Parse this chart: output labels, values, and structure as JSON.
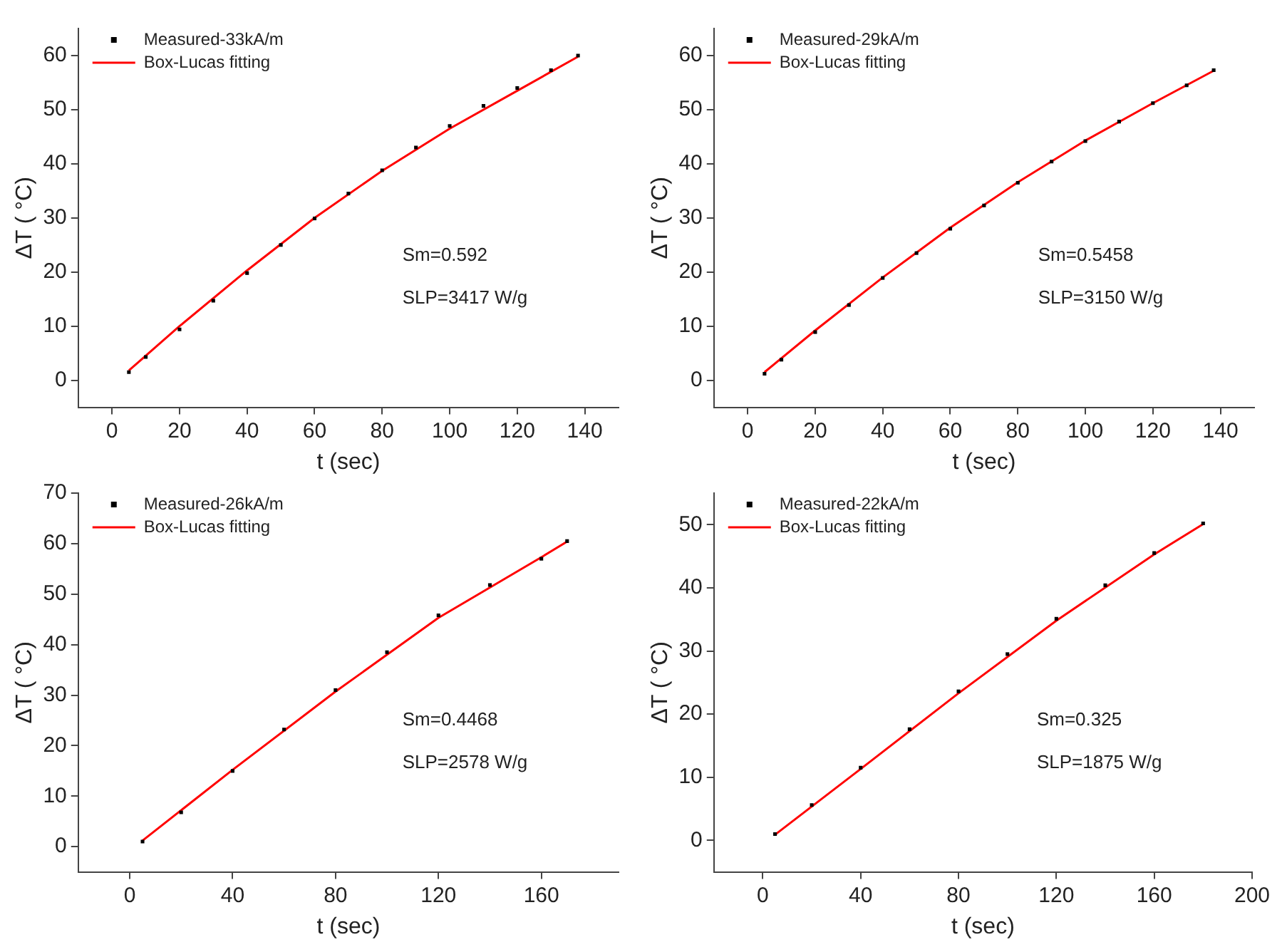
{
  "chart_data": [
    {
      "type": "scatter",
      "xlabel": "t (sec)",
      "ylabel": "ΔT ( °C)",
      "xlim": [
        -10,
        150
      ],
      "xticks": [
        0,
        20,
        40,
        60,
        80,
        100,
        120,
        140
      ],
      "ylim": [
        -5,
        65
      ],
      "yticks": [
        0,
        10,
        20,
        30,
        40,
        50,
        60
      ],
      "grid": false,
      "legend": "top left",
      "annotations": [
        "Sm=0.592",
        "SLP=3417 W/g"
      ],
      "series": [
        {
          "name": "Measured-33kA/m",
          "marker": "square",
          "color": "#000000",
          "x": [
            5,
            10,
            20,
            30,
            40,
            50,
            60,
            70,
            80,
            90,
            100,
            110,
            120,
            130,
            138
          ],
          "values": [
            1.5,
            4.3,
            9.4,
            14.7,
            19.8,
            25.0,
            29.9,
            34.5,
            38.8,
            43.0,
            47.0,
            50.7,
            54.0,
            57.3,
            60.0
          ]
        },
        {
          "name": "Box-Lucas fitting",
          "type": "line",
          "marker": "none",
          "color": "#ff0000",
          "x": [
            5,
            20,
            40,
            60,
            80,
            100,
            120,
            138
          ],
          "values": [
            1.8,
            10.0,
            20.3,
            30.0,
            38.7,
            46.5,
            53.5,
            59.8
          ]
        }
      ]
    },
    {
      "type": "scatter",
      "xlabel": "t (sec)",
      "ylabel": "ΔT ( °C)",
      "xlim": [
        -10,
        150
      ],
      "xticks": [
        0,
        20,
        40,
        60,
        80,
        100,
        120,
        140
      ],
      "ylim": [
        -5,
        65
      ],
      "yticks": [
        0,
        10,
        20,
        30,
        40,
        50,
        60
      ],
      "grid": false,
      "legend": "top left",
      "annotations": [
        "Sm=0.5458",
        "SLP=3150 W/g"
      ],
      "series": [
        {
          "name": "Measured-29kA/m",
          "marker": "square",
          "color": "#000000",
          "x": [
            5,
            10,
            20,
            30,
            40,
            50,
            60,
            70,
            80,
            90,
            100,
            110,
            120,
            130,
            138
          ],
          "values": [
            1.2,
            3.8,
            8.9,
            13.9,
            18.9,
            23.5,
            28.0,
            32.3,
            36.5,
            40.4,
            44.2,
            47.8,
            51.2,
            54.5,
            57.3
          ]
        },
        {
          "name": "Box-Lucas fitting",
          "type": "line",
          "marker": "none",
          "color": "#ff0000",
          "x": [
            5,
            20,
            40,
            60,
            80,
            100,
            120,
            138
          ],
          "values": [
            1.5,
            9.2,
            19.0,
            28.2,
            36.6,
            44.3,
            51.2,
            57.2
          ]
        }
      ]
    },
    {
      "type": "scatter",
      "xlabel": "t (sec)",
      "ylabel": "ΔT ( °C)",
      "xlim": [
        -20,
        190
      ],
      "xticks": [
        0,
        40,
        80,
        120,
        160
      ],
      "ylim": [
        -5,
        70
      ],
      "yticks": [
        0,
        10,
        20,
        30,
        40,
        50,
        60,
        70
      ],
      "grid": false,
      "legend": "top left",
      "annotations": [
        "Sm=0.4468",
        "SLP=2578 W/g"
      ],
      "series": [
        {
          "name": "Measured-26kA/m",
          "marker": "square",
          "color": "#000000",
          "x": [
            5,
            20,
            40,
            60,
            80,
            100,
            120,
            140,
            160,
            170
          ],
          "values": [
            1.0,
            6.8,
            15.0,
            23.2,
            31.0,
            38.5,
            45.8,
            51.8,
            57.0,
            60.5
          ]
        },
        {
          "name": "Box-Lucas fitting",
          "type": "line",
          "marker": "none",
          "color": "#ff0000",
          "x": [
            5,
            40,
            80,
            120,
            160,
            170
          ],
          "values": [
            1.2,
            15.2,
            30.7,
            45.3,
            57.3,
            60.4
          ]
        }
      ]
    },
    {
      "type": "scatter",
      "xlabel": "t (sec)",
      "ylabel": "ΔT ( °C)",
      "xlim": [
        -20,
        200
      ],
      "xticks": [
        0,
        40,
        80,
        120,
        160,
        200
      ],
      "ylim": [
        -5,
        55
      ],
      "yticks": [
        0,
        10,
        20,
        30,
        40,
        50
      ],
      "grid": false,
      "legend": "top left",
      "annotations": [
        "Sm=0.325",
        "SLP=1875 W/g"
      ],
      "series": [
        {
          "name": "Measured-22kA/m",
          "marker": "square",
          "color": "#000000",
          "x": [
            5,
            20,
            40,
            60,
            80,
            100,
            120,
            140,
            160,
            180
          ],
          "values": [
            1.0,
            5.6,
            11.5,
            17.6,
            23.6,
            29.5,
            35.1,
            40.4,
            45.5,
            50.2
          ]
        },
        {
          "name": "Box-Lucas fitting",
          "type": "line",
          "marker": "none",
          "color": "#ff0000",
          "x": [
            5,
            40,
            80,
            120,
            160,
            180
          ],
          "values": [
            0.9,
            11.3,
            23.3,
            34.8,
            45.3,
            50.1
          ]
        }
      ]
    }
  ]
}
